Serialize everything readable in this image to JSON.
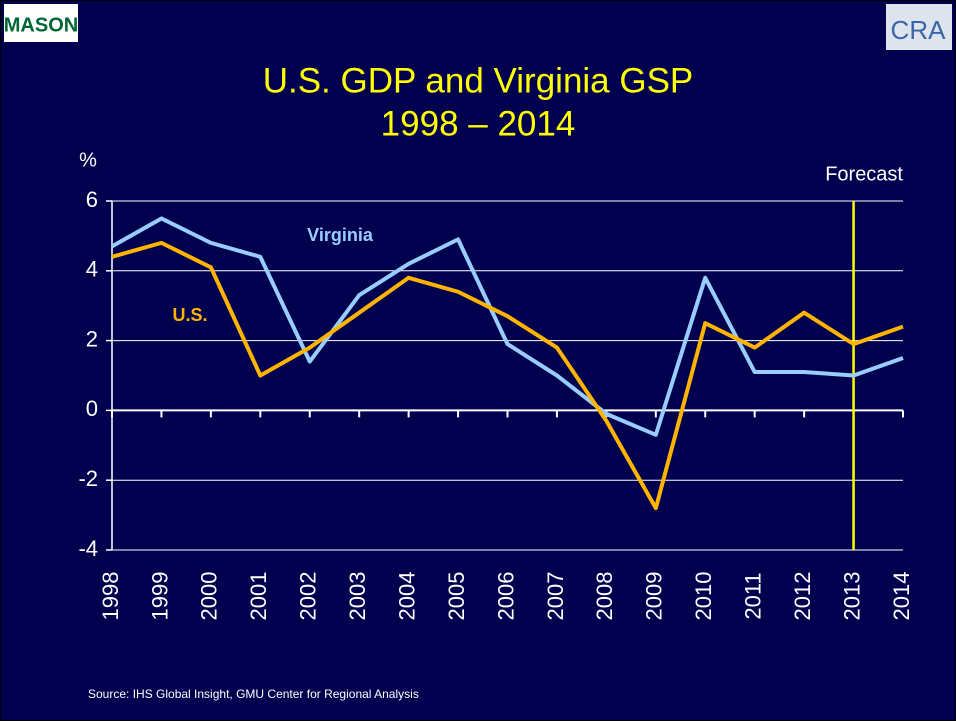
{
  "chart_data": {
    "type": "line",
    "title": "U.S. GDP and Virginia GSP",
    "subtitle": "1998 – 2014",
    "y_label": "%",
    "categories": [
      "1998",
      "1999",
      "2000",
      "2001",
      "2002",
      "2003",
      "2004",
      "2005",
      "2006",
      "2007",
      "2008",
      "2009",
      "2010",
      "2011",
      "2012",
      "2013",
      "2014"
    ],
    "series": [
      {
        "name": "Virginia",
        "color": "#99ccff",
        "values": [
          4.7,
          5.5,
          4.8,
          4.4,
          1.4,
          3.3,
          4.2,
          4.9,
          1.9,
          1.0,
          -0.1,
          -0.7,
          3.8,
          1.1,
          1.1,
          1.0,
          1.5
        ]
      },
      {
        "name": "U.S.",
        "color": "#ffb400",
        "values": [
          4.4,
          4.8,
          4.1,
          1.0,
          1.8,
          2.8,
          3.8,
          3.4,
          2.7,
          1.8,
          -0.3,
          -2.8,
          2.5,
          1.8,
          2.8,
          1.9,
          2.4
        ]
      }
    ],
    "ylim": [
      -4,
      6
    ],
    "yticks": [
      -4,
      -2,
      0,
      2,
      4,
      6
    ],
    "grid": true,
    "annotations": [
      {
        "text": "Forecast",
        "x": "2013",
        "color": "#ffff00"
      }
    ],
    "source": "Source: IHS Global Insight, GMU Center for Regional Analysis"
  },
  "logos": {
    "left": "MASON",
    "right": "CRA"
  }
}
